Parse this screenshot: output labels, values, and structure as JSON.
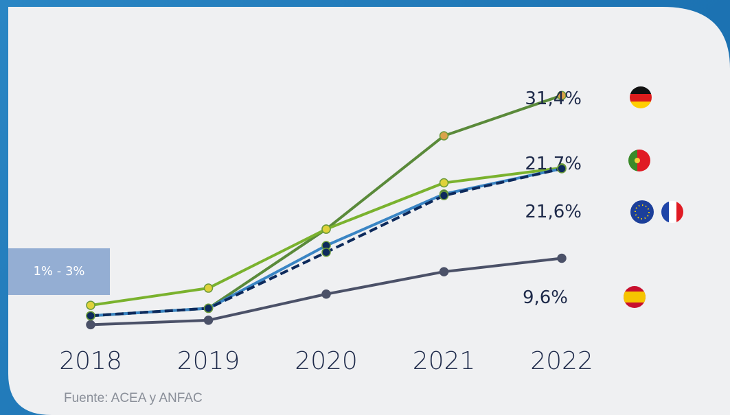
{
  "chart_data": {
    "type": "line",
    "categories": [
      "2018",
      "2019",
      "2020",
      "2021",
      "2022"
    ],
    "ylim": [
      0,
      35
    ],
    "series": [
      {
        "color": "#4b5168",
        "marker_color": "#4b5168",
        "values": [
          0.7,
          1.3,
          4.8,
          7.8,
          9.6
        ],
        "value_labels": [
          null,
          null,
          null,
          null,
          "9,6%"
        ]
      },
      {
        "color": "#5a8a3a",
        "marker_color": "#d9a24a",
        "values": [
          1.9,
          2.9,
          13.5,
          26.0,
          31.4
        ],
        "value_labels": [
          null,
          null,
          null,
          null,
          "31,4%"
        ]
      },
      {
        "color": "#7ab22e",
        "marker_color": "#dfd23a",
        "values": [
          3.3,
          5.6,
          13.5,
          19.7,
          21.7
        ],
        "value_labels": [
          null,
          null,
          null,
          null,
          "21,7%"
        ]
      },
      {
        "color": "#3a85c4",
        "marker_color": "#0d2a5c",
        "values": [
          1.9,
          2.9,
          11.3,
          18.2,
          21.6
        ],
        "value_labels": [
          null,
          null,
          null,
          null,
          "21,6%"
        ]
      },
      {
        "color": "#0d2a5c",
        "marker_color": "#0d2a5c",
        "dash": true,
        "values": [
          1.9,
          2.9,
          10.4,
          18.0,
          21.6
        ]
      }
    ],
    "annotation": "1% - 3%",
    "source": "Fuente: ACEA y ANFAC"
  }
}
